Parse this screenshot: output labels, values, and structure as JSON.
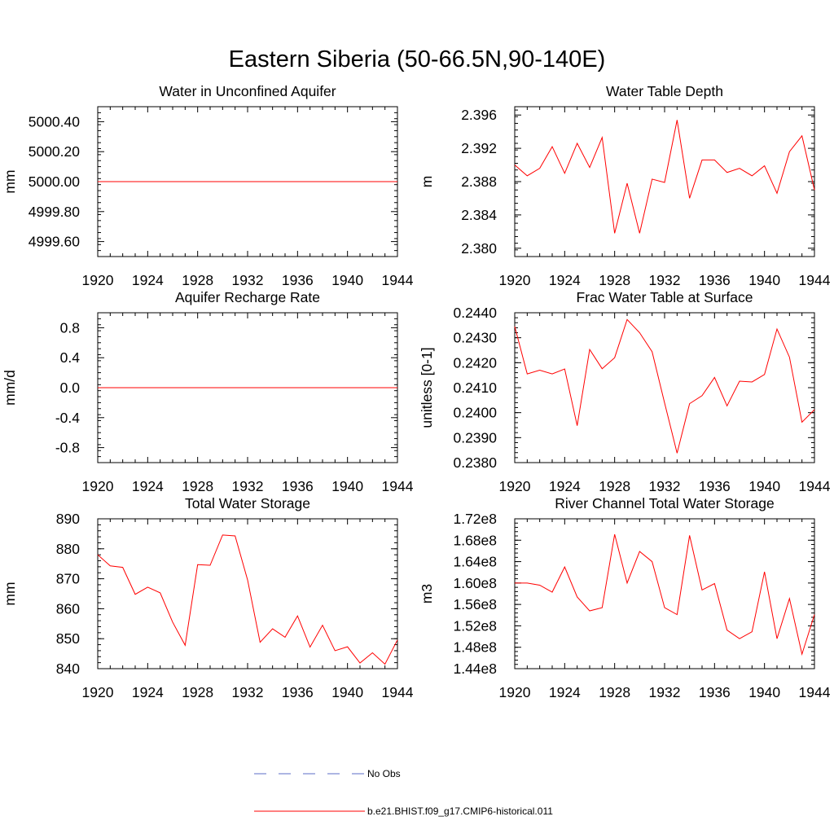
{
  "figure": {
    "title": "Eastern Siberia (50-66.5N,90-140E)",
    "series_color": "#ff0000",
    "obs_color": "#5b6ec7",
    "legend": {
      "obs_label": "No Obs",
      "model_label": "b.e21.BHIST.f09_g17.CMIP6-historical.011"
    }
  },
  "chart_data": [
    {
      "type": "line",
      "title": "Water in Unconfined Aquifer",
      "xlabel": "",
      "ylabel": "mm",
      "xlim": [
        1920,
        1944
      ],
      "ylim": [
        4999.5,
        5000.5
      ],
      "xticks": [
        1920,
        1924,
        1928,
        1932,
        1936,
        1940,
        1944
      ],
      "xtick_labels": [
        "1920",
        "1924",
        "1928",
        "1932",
        "1936",
        "1940",
        "1944"
      ],
      "yticks": [
        4999.6,
        4999.8,
        5000.0,
        5000.2,
        5000.4
      ],
      "ytick_labels": [
        "4999.60",
        "4999.80",
        "5000.00",
        "5000.20",
        "5000.40"
      ],
      "x": [
        1920,
        1921,
        1922,
        1923,
        1924,
        1925,
        1926,
        1927,
        1928,
        1929,
        1930,
        1931,
        1932,
        1933,
        1934,
        1935,
        1936,
        1937,
        1938,
        1939,
        1940,
        1941,
        1942,
        1943,
        1944
      ],
      "series": [
        {
          "values": [
            5000,
            5000,
            5000,
            5000,
            5000,
            5000,
            5000,
            5000,
            5000,
            5000,
            5000,
            5000,
            5000,
            5000,
            5000,
            5000,
            5000,
            5000,
            5000,
            5000,
            5000,
            5000,
            5000,
            5000,
            5000
          ]
        }
      ]
    },
    {
      "type": "line",
      "title": "Water Table Depth",
      "xlabel": "",
      "ylabel": "m",
      "xlim": [
        1920,
        1944
      ],
      "ylim": [
        2.379,
        2.397
      ],
      "xticks": [
        1920,
        1924,
        1928,
        1932,
        1936,
        1940,
        1944
      ],
      "xtick_labels": [
        "1920",
        "1924",
        "1928",
        "1932",
        "1936",
        "1940",
        "1944"
      ],
      "yticks": [
        2.38,
        2.384,
        2.388,
        2.392,
        2.396
      ],
      "ytick_labels": [
        "2.380",
        "2.384",
        "2.388",
        "2.392",
        "2.396"
      ],
      "x": [
        1920,
        1921,
        1922,
        1923,
        1924,
        1925,
        1926,
        1927,
        1928,
        1929,
        1930,
        1931,
        1932,
        1933,
        1934,
        1935,
        1936,
        1937,
        1938,
        1939,
        1940,
        1941,
        1942,
        1943,
        1944
      ],
      "series": [
        {
          "values": [
            2.39,
            2.3887,
            2.3896,
            2.3922,
            2.389,
            2.3926,
            2.3897,
            2.3933,
            2.3818,
            2.3878,
            2.3818,
            2.3883,
            2.3879,
            2.3954,
            2.386,
            2.3906,
            2.3906,
            2.3891,
            2.3896,
            2.3887,
            2.3899,
            2.3866,
            2.3916,
            2.3935,
            2.387
          ]
        }
      ]
    },
    {
      "type": "line",
      "title": "Aquifer Recharge Rate",
      "xlabel": "",
      "ylabel": "mm/d",
      "xlim": [
        1920,
        1944
      ],
      "ylim": [
        -1.0,
        1.0
      ],
      "xticks": [
        1920,
        1924,
        1928,
        1932,
        1936,
        1940,
        1944
      ],
      "xtick_labels": [
        "1920",
        "1924",
        "1928",
        "1932",
        "1936",
        "1940",
        "1944"
      ],
      "yticks": [
        -0.8,
        -0.4,
        0.0,
        0.4,
        0.8
      ],
      "ytick_labels": [
        "-0.8",
        "-0.4",
        "0.0",
        "0.4",
        "0.8"
      ],
      "x": [
        1920,
        1921,
        1922,
        1923,
        1924,
        1925,
        1926,
        1927,
        1928,
        1929,
        1930,
        1931,
        1932,
        1933,
        1934,
        1935,
        1936,
        1937,
        1938,
        1939,
        1940,
        1941,
        1942,
        1943,
        1944
      ],
      "series": [
        {
          "values": [
            0,
            0,
            0,
            0,
            0,
            0,
            0,
            0,
            0,
            0,
            0,
            0,
            0,
            0,
            0,
            0,
            0,
            0,
            0,
            0,
            0,
            0,
            0,
            0,
            0
          ]
        }
      ]
    },
    {
      "type": "line",
      "title": "Frac Water Table at Surface",
      "xlabel": "",
      "ylabel": "unitless [0-1]",
      "xlim": [
        1920,
        1944
      ],
      "ylim": [
        0.238,
        0.244
      ],
      "xticks": [
        1920,
        1924,
        1928,
        1932,
        1936,
        1940,
        1944
      ],
      "xtick_labels": [
        "1920",
        "1924",
        "1928",
        "1932",
        "1936",
        "1940",
        "1944"
      ],
      "yticks": [
        0.238,
        0.239,
        0.24,
        0.241,
        0.242,
        0.243,
        0.244
      ],
      "ytick_labels": [
        "0.2380",
        "0.2390",
        "0.2400",
        "0.2410",
        "0.2420",
        "0.2430",
        "0.2440"
      ],
      "x": [
        1920,
        1921,
        1922,
        1923,
        1924,
        1925,
        1926,
        1927,
        1928,
        1929,
        1930,
        1931,
        1932,
        1933,
        1934,
        1935,
        1936,
        1937,
        1938,
        1939,
        1940,
        1941,
        1942,
        1943,
        1944
      ],
      "series": [
        {
          "values": [
            0.24345,
            0.24155,
            0.2417,
            0.24155,
            0.24175,
            0.23948,
            0.24253,
            0.24176,
            0.2422,
            0.24373,
            0.2432,
            0.24244,
            0.24039,
            0.23838,
            0.24036,
            0.24068,
            0.24141,
            0.24027,
            0.24126,
            0.24123,
            0.24153,
            0.24335,
            0.24222,
            0.23962,
            0.24012
          ]
        }
      ]
    },
    {
      "type": "line",
      "title": "Total Water Storage",
      "xlabel": "",
      "ylabel": "mm",
      "xlim": [
        1920,
        1944
      ],
      "ylim": [
        840,
        890
      ],
      "xticks": [
        1920,
        1924,
        1928,
        1932,
        1936,
        1940,
        1944
      ],
      "xtick_labels": [
        "1920",
        "1924",
        "1928",
        "1932",
        "1936",
        "1940",
        "1944"
      ],
      "yticks": [
        840,
        850,
        860,
        870,
        880,
        890
      ],
      "ytick_labels": [
        "840",
        "850",
        "860",
        "870",
        "880",
        "890"
      ],
      "x": [
        1920,
        1921,
        1922,
        1923,
        1924,
        1925,
        1926,
        1927,
        1928,
        1929,
        1930,
        1931,
        1932,
        1933,
        1934,
        1935,
        1936,
        1937,
        1938,
        1939,
        1940,
        1941,
        1942,
        1943,
        1944
      ],
      "series": [
        {
          "values": [
            878.0,
            874.3,
            873.8,
            864.8,
            867.2,
            865.3,
            855.5,
            847.8,
            874.7,
            874.5,
            884.6,
            884.3,
            869.6,
            848.8,
            853.3,
            850.5,
            857.6,
            847.2,
            854.5,
            846.0,
            847.3,
            841.9,
            845.3,
            841.5,
            849.6
          ]
        }
      ]
    },
    {
      "type": "line",
      "title": "River Channel Total Water Storage",
      "xlabel": "",
      "ylabel": "m3",
      "xlim": [
        1920,
        1944
      ],
      "ylim": [
        144000000.0,
        172000000.0
      ],
      "xticks": [
        1920,
        1924,
        1928,
        1932,
        1936,
        1940,
        1944
      ],
      "xtick_labels": [
        "1920",
        "1924",
        "1928",
        "1932",
        "1936",
        "1940",
        "1944"
      ],
      "yticks": [
        144000000.0,
        148000000.0,
        152000000.0,
        156000000.0,
        160000000.0,
        164000000.0,
        168000000.0,
        172000000.0
      ],
      "ytick_labels": [
        "1.44e8",
        "1.48e8",
        "1.52e8",
        "1.56e8",
        "1.60e8",
        "1.64e8",
        "1.68e8",
        "1.72e8"
      ],
      "x": [
        1920,
        1921,
        1922,
        1923,
        1924,
        1925,
        1926,
        1927,
        1928,
        1929,
        1930,
        1931,
        1932,
        1933,
        1934,
        1935,
        1936,
        1937,
        1938,
        1939,
        1940,
        1941,
        1942,
        1943,
        1944
      ],
      "series": [
        {
          "values": [
            160000000.0,
            160000000.0,
            159600000.0,
            158300000.0,
            163000000.0,
            157400000.0,
            154800000.0,
            155400000.0,
            169100000.0,
            160000000.0,
            165900000.0,
            164000000.0,
            155400000.0,
            154100000.0,
            168900000.0,
            158700000.0,
            159900000.0,
            151200000.0,
            149600000.0,
            150900000.0,
            162100000.0,
            149600000.0,
            157100000.0,
            146700000.0,
            154100000.0
          ]
        }
      ]
    }
  ]
}
